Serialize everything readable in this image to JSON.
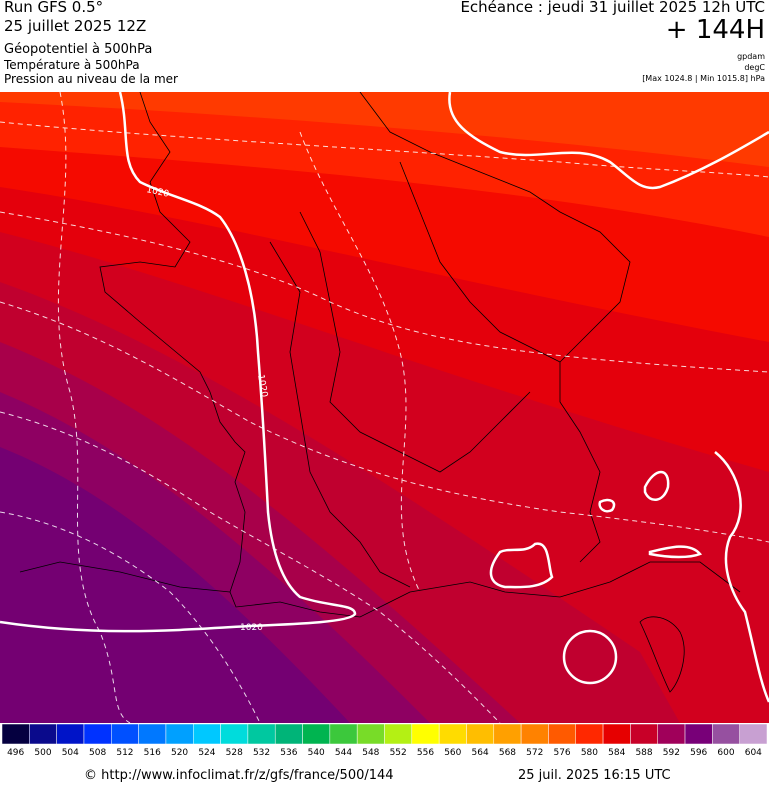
{
  "header": {
    "run": "Run GFS 0.5°",
    "run_date": "25 juillet 2025 12Z",
    "layer1": "Géopotentiel à 500hPa",
    "layer2": "Température à 500hPa",
    "layer3": "Pression au niveau de la mer",
    "valid_time": "Echéance : jeudi 31 juillet 2025 12h UTC",
    "lead_time": "+ 144H",
    "unit_geopotential": "gpdam",
    "unit_temperature": "degC",
    "pressure_range": "[Max 1024.8 | Min 1015.8] hPa"
  },
  "map": {
    "region": "France",
    "isobar_labels": [
      "1020",
      "1020",
      "1020"
    ],
    "colors": {
      "land_border": "#000000",
      "isobar": "#ffffff",
      "isotherm": "#ffffff"
    }
  },
  "legend": {
    "values": [
      "496",
      "500",
      "504",
      "508",
      "512",
      "516",
      "520",
      "524",
      "528",
      "532",
      "536",
      "540",
      "544",
      "548",
      "552",
      "556",
      "560",
      "564",
      "568",
      "572",
      "576",
      "580",
      "584",
      "588",
      "592",
      "596",
      "600",
      "604"
    ],
    "colors": [
      "#050040",
      "#0a0a8c",
      "#0014c8",
      "#0032ff",
      "#0050ff",
      "#0078ff",
      "#00a0ff",
      "#00c8ff",
      "#00dcdc",
      "#00c8a0",
      "#00b478",
      "#00b450",
      "#3cc83c",
      "#78dc28",
      "#b4f014",
      "#ffff00",
      "#ffdc00",
      "#ffbe00",
      "#ffa000",
      "#ff8200",
      "#ff5a00",
      "#ff2800",
      "#e60000",
      "#c80028",
      "#a0005a",
      "#780078",
      "#9650a0",
      "#c8a0d2"
    ]
  },
  "footer": {
    "credit": "© http://www.infoclimat.fr/z/gfs/france/500/144",
    "generated": "25 juil. 2025 16:15 UTC"
  }
}
